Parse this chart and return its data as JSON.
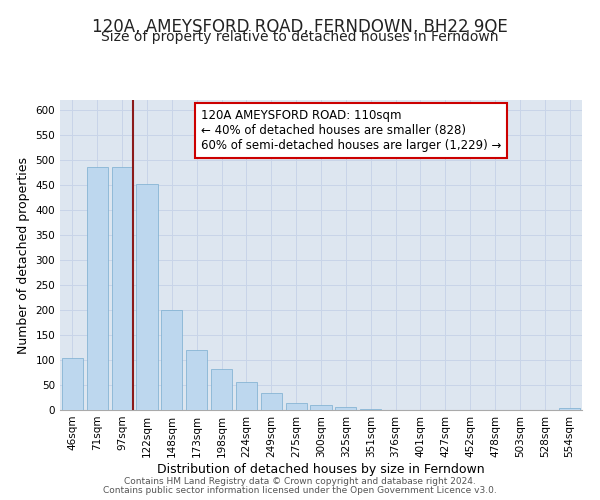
{
  "title": "120A, AMEYSFORD ROAD, FERNDOWN, BH22 9QE",
  "subtitle": "Size of property relative to detached houses in Ferndown",
  "xlabel": "Distribution of detached houses by size in Ferndown",
  "ylabel": "Number of detached properties",
  "bar_labels": [
    "46sqm",
    "71sqm",
    "97sqm",
    "122sqm",
    "148sqm",
    "173sqm",
    "198sqm",
    "224sqm",
    "249sqm",
    "275sqm",
    "300sqm",
    "325sqm",
    "351sqm",
    "376sqm",
    "401sqm",
    "427sqm",
    "452sqm",
    "478sqm",
    "503sqm",
    "528sqm",
    "554sqm"
  ],
  "bar_values": [
    105,
    487,
    487,
    452,
    200,
    120,
    82,
    57,
    35,
    15,
    10,
    7,
    2,
    1,
    1,
    0,
    0,
    0,
    0,
    0,
    5
  ],
  "bar_color": "#BDD7EE",
  "bar_edge_color": "#7aadcf",
  "marker_index": 2,
  "marker_color": "#8B1A1A",
  "annotation_text": "120A AMEYSFORD ROAD: 110sqm\n← 40% of detached houses are smaller (828)\n60% of semi-detached houses are larger (1,229) →",
  "annotation_box_color": "#ffffff",
  "annotation_box_edge": "#CC0000",
  "ylim": [
    0,
    620
  ],
  "yticks": [
    0,
    50,
    100,
    150,
    200,
    250,
    300,
    350,
    400,
    450,
    500,
    550,
    600
  ],
  "footer1": "Contains HM Land Registry data © Crown copyright and database right 2024.",
  "footer2": "Contains public sector information licensed under the Open Government Licence v3.0.",
  "title_fontsize": 12,
  "subtitle_fontsize": 10,
  "axis_label_fontsize": 9,
  "tick_fontsize": 7.5,
  "annotation_fontsize": 8.5,
  "footer_fontsize": 6.5,
  "grid_color": "#c8d4e8",
  "background_color": "#dde6f0"
}
